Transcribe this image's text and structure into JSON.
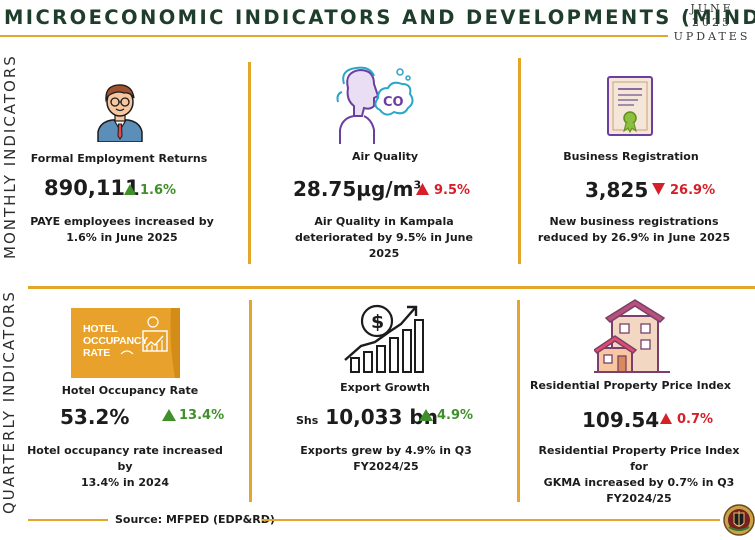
{
  "header": {
    "title": "MICROECONOMIC INDICATORS AND DEVELOPMENTS (MIND)",
    "month": "JUNE",
    "year": "2025",
    "updates": "UPDATES"
  },
  "sections": {
    "monthly": "MONTHLY INDICATORS",
    "quarterly": "QUARTERLY INDICATORS"
  },
  "monthly": {
    "employment": {
      "title": "Formal Employment Returns",
      "value": "890,111",
      "change": "1.6%",
      "desc_line1": "PAYE employees increased by",
      "desc_line2": "1.6% in June 2025",
      "icon": "businessman-icon"
    },
    "air": {
      "title": "Air Quality",
      "value": "28.75µg/m",
      "unit_sup": "3",
      "change": "9.5%",
      "desc_line1": "Air Quality in Kampala",
      "desc_line2": "deteriorated by 9.5% in June 2025",
      "icon": "co2-person-icon",
      "icon_text": "CO"
    },
    "business": {
      "title": "Business Registration",
      "value": "3,825",
      "change": "26.9%",
      "desc_line1": "New business registrations",
      "desc_line2": "reduced by 26.9% in June 2025",
      "icon": "certificate-icon"
    }
  },
  "quarterly": {
    "hotel": {
      "title": "Hotel Occupancy Rate",
      "value": "53.2%",
      "change": "13.4%",
      "desc_line1": "Hotel occupancy rate increased by",
      "desc_line2": "13.4% in 2024",
      "icon": "hotel-occupancy-sign-icon",
      "sign_line1": "HOTEL",
      "sign_line2": "OCCUPANCY",
      "sign_line3": "RATE"
    },
    "export": {
      "title": "Export Growth",
      "currency": "Shs",
      "value": "10,033 bn",
      "change": "4.9%",
      "desc_line1": "Exports grew by 4.9% in Q3",
      "desc_line2": "FY2024/25",
      "icon": "money-growth-chart-icon",
      "icon_symbol": "$"
    },
    "property": {
      "title": "Residential Property Price Index",
      "value": "109.54",
      "change": "0.7%",
      "desc_line1": "Residential Property Price Index for",
      "desc_line2": "GKMA increased by 0.7% in Q3",
      "desc_line3": "FY2024/25",
      "icon": "houses-icon"
    }
  },
  "footer": {
    "source": "Source: MFPED (EDP&RD)",
    "emblem": "uganda-coat-of-arms-icon"
  },
  "colors": {
    "gold": "#e3a52a",
    "green_up": "#3f8f2a",
    "red": "#d5202a",
    "title_green": "#1f3d2b",
    "hotel_orange": "#e8a12a"
  }
}
